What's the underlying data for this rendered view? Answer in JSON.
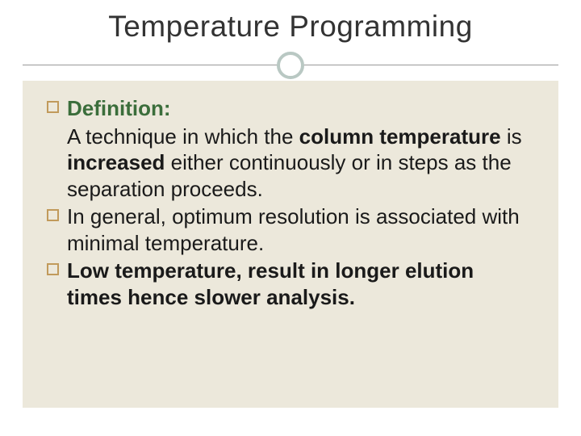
{
  "slide": {
    "title": "Temperature Programming",
    "background_color": "#ffffff",
    "content_background": "#ece8db",
    "bullet_border_color": "#c19a5b",
    "circle_border_color": "#b9c8c3",
    "divider_color": "#999999",
    "title_color": "#333333",
    "text_color": "#1a1a1a",
    "highlight_color": "#3b6e3b",
    "title_fontsize": 37,
    "body_fontsize": 26,
    "bullets": [
      {
        "heading": "Definition:",
        "heading_style": "highlight",
        "body_segments": [
          {
            "text": "A technique in which the ",
            "bold": false
          },
          {
            "text": "column temperature",
            "bold": true
          },
          {
            "text": " is ",
            "bold": false
          },
          {
            "text": "increased",
            "bold": true
          },
          {
            "text": " either continuously or in steps as the separation proceeds.",
            "bold": false
          }
        ]
      },
      {
        "body_segments": [
          {
            "text": "In general, optimum resolution is associated with minimal temperature.",
            "bold": false
          }
        ]
      },
      {
        "body_segments": [
          {
            "text": "Low temperature, result in longer elution times hence slower analysis.",
            "bold": true
          }
        ]
      }
    ]
  }
}
